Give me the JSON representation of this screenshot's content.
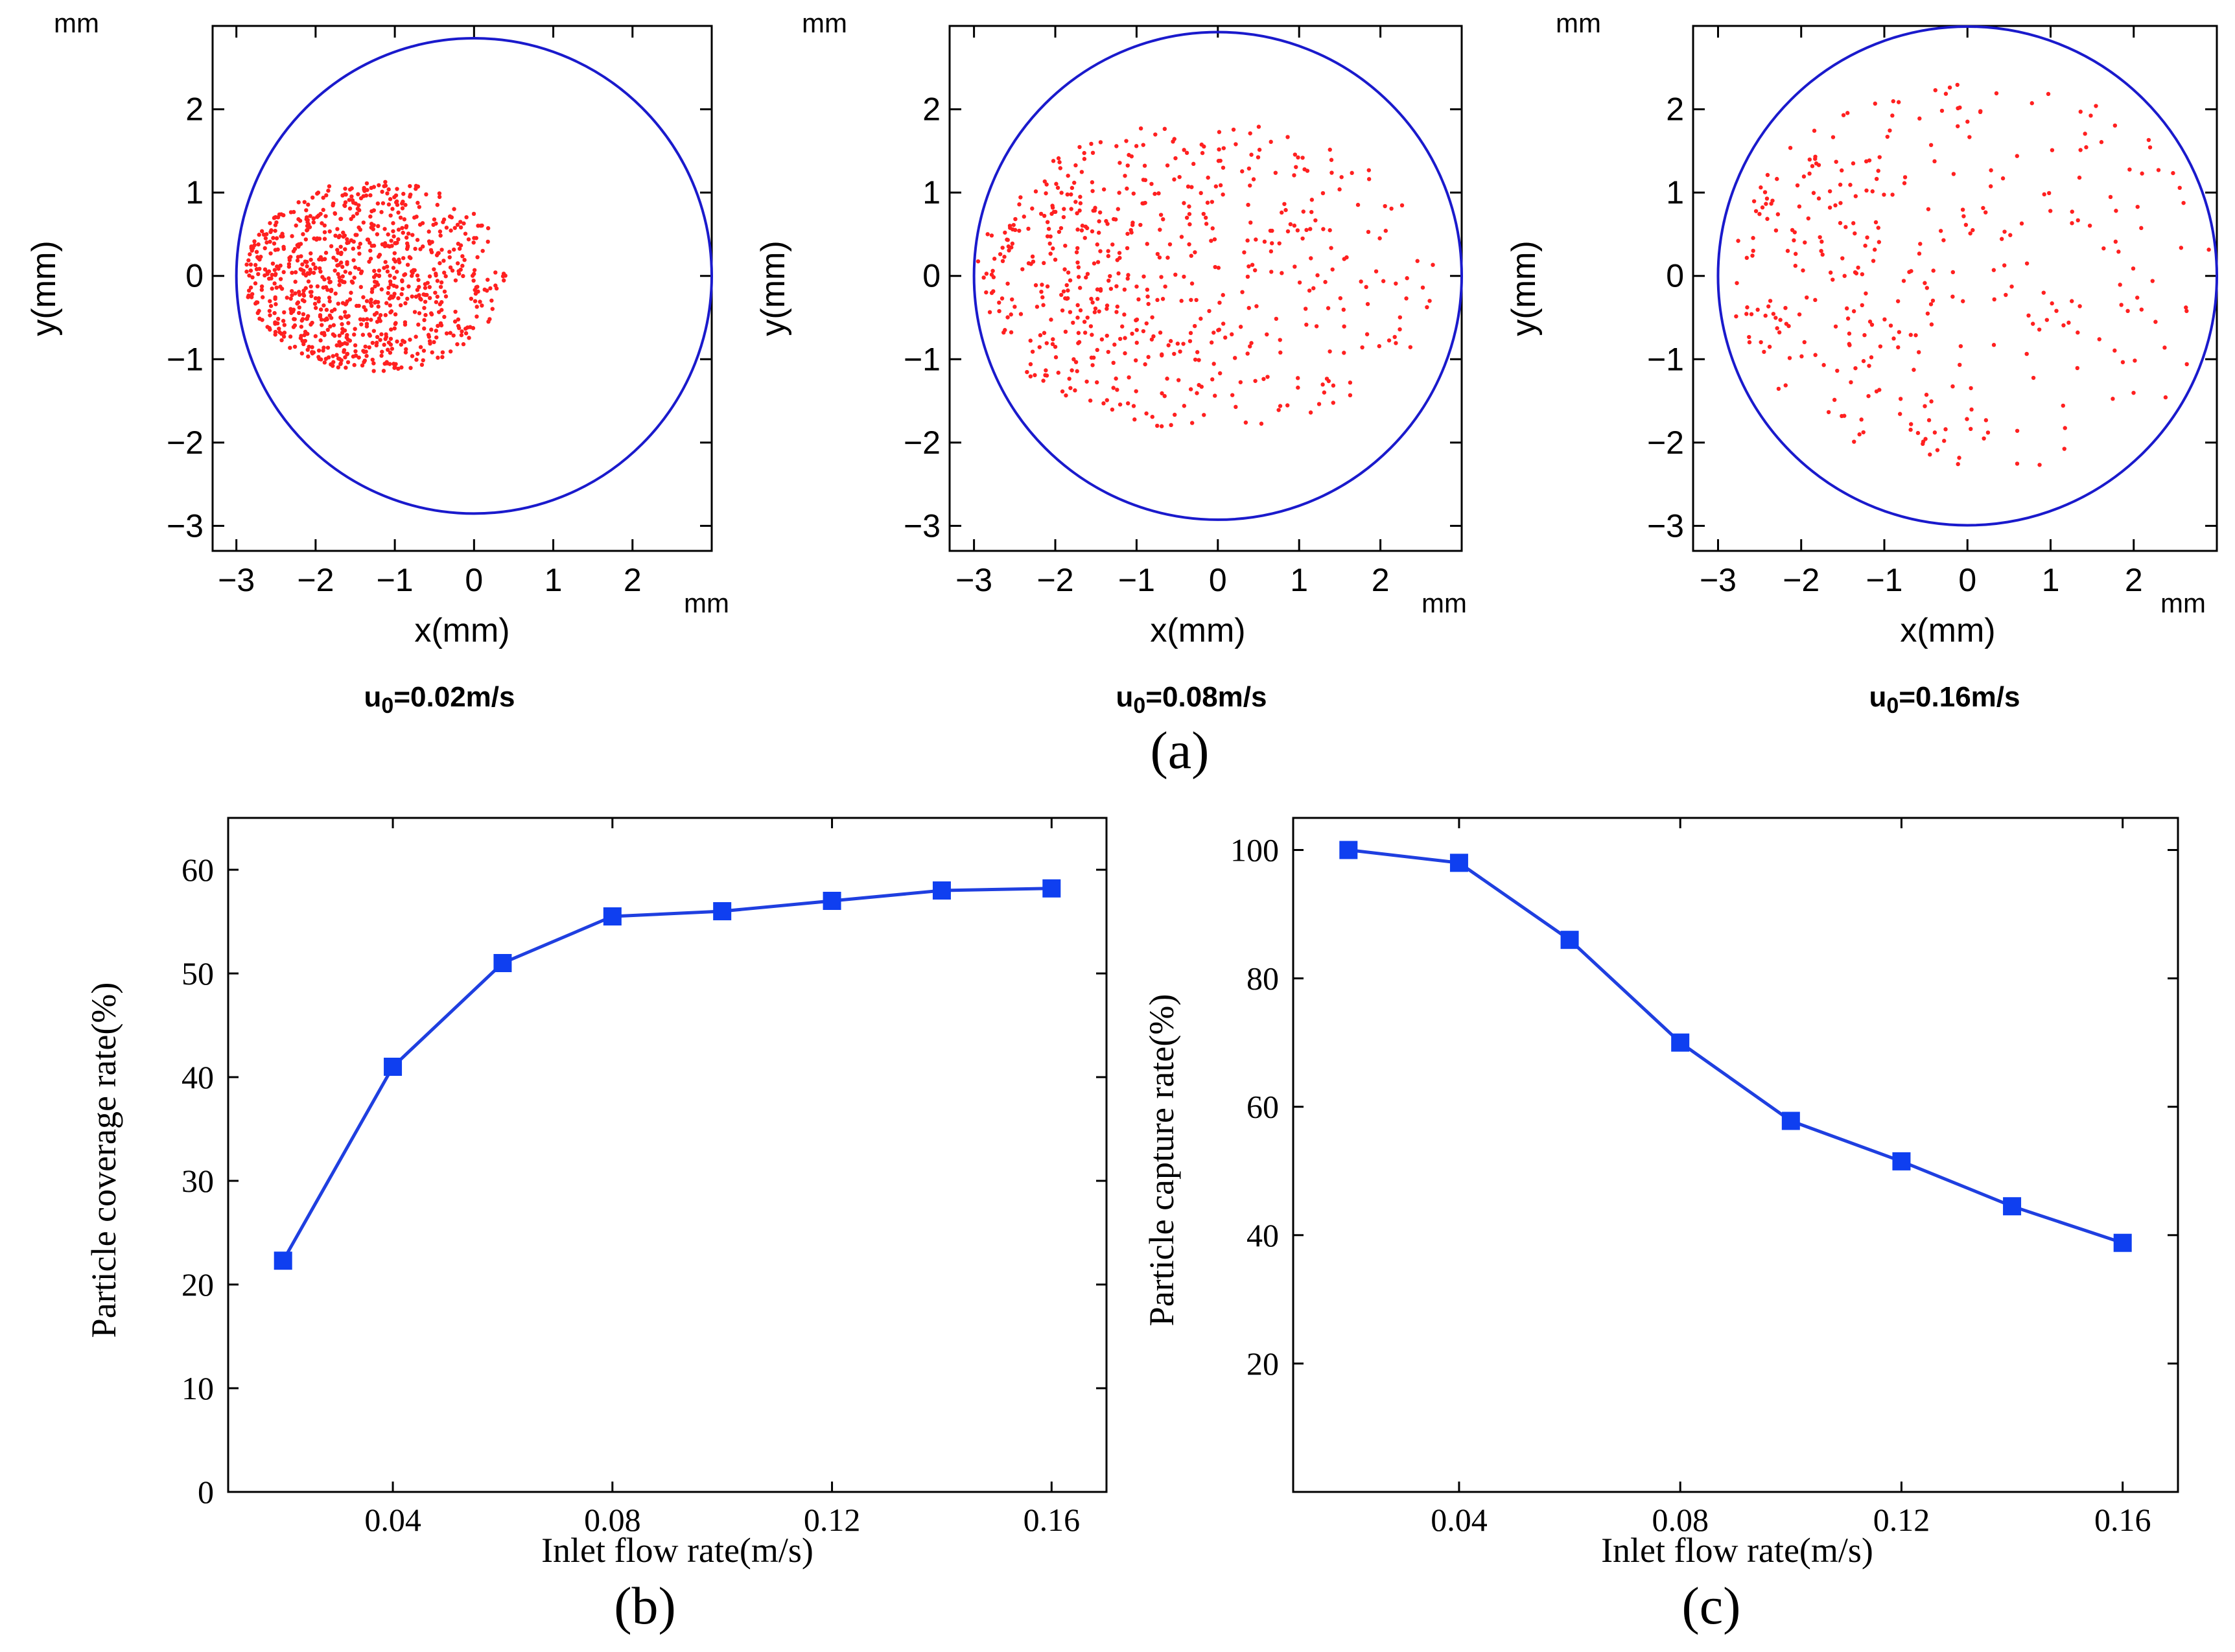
{
  "figure": {
    "panel_a_label": "(a)",
    "panel_b_label": "(b)",
    "panel_c_label": "(c)"
  },
  "colors": {
    "circle": "#1a1acc",
    "particle": "#ff2020",
    "line": "#1f3fe0",
    "marker": "#0f3ff0",
    "axis": "#000000"
  },
  "chart_data": [
    {
      "id": "scatter1",
      "type": "scatter",
      "caption_prefix": "u",
      "caption_sub": "0",
      "caption_suffix": "=0.02m/s",
      "unit_top": "mm",
      "unit_right": "mm",
      "xlabel": "x(mm)",
      "ylabel": "y(mm)",
      "xlim": [
        -3.3,
        3.0
      ],
      "ylim": [
        -3.3,
        3.0
      ],
      "xticks": [
        -3,
        -2,
        -1,
        0,
        1,
        2
      ],
      "yticks": [
        -3,
        -2,
        -1,
        0,
        1,
        2
      ],
      "xtick_labels": [
        "−3",
        "−2",
        "−1",
        "0",
        "1",
        "2"
      ],
      "ytick_labels": [
        "−3",
        "−2",
        "−1",
        "0",
        "1",
        "2"
      ],
      "circle": {
        "cx": 0,
        "cy": 0,
        "r": 3.0
      },
      "particles": {
        "count": 900,
        "region": "ellipse",
        "center": [
          -1.25,
          0.0
        ],
        "rx": 1.65,
        "ry": 1.15,
        "bias_toward_x": -2.4,
        "seed": 11
      }
    },
    {
      "id": "scatter2",
      "type": "scatter",
      "caption_prefix": "u",
      "caption_sub": "0",
      "caption_suffix": "=0.08m/s",
      "unit_top": "mm",
      "unit_right": "mm",
      "xlabel": "x(mm)",
      "ylabel": "y(mm)",
      "xlim": [
        -3.3,
        3.0
      ],
      "ylim": [
        -3.3,
        3.0
      ],
      "xticks": [
        -3,
        -2,
        -1,
        0,
        1,
        2
      ],
      "yticks": [
        -3,
        -2,
        -1,
        0,
        1,
        2
      ],
      "xtick_labels": [
        "−3",
        "−2",
        "−1",
        "0",
        "1",
        "2"
      ],
      "ytick_labels": [
        "−3",
        "−2",
        "−1",
        "0",
        "1",
        "2"
      ],
      "circle": {
        "cx": 0,
        "cy": 0,
        "r": 3.0
      },
      "particles": {
        "count": 560,
        "region": "ellipse",
        "center": [
          -0.15,
          0.0
        ],
        "rx": 2.85,
        "ry": 1.85,
        "bias_toward_x": -2.2,
        "seed": 23
      }
    },
    {
      "id": "scatter3",
      "type": "scatter",
      "caption_prefix": "u",
      "caption_sub": "0",
      "caption_suffix": "=0.16m/s",
      "unit_top": "mm",
      "unit_right": "mm",
      "xlabel": "x(mm)",
      "ylabel": "y(mm)",
      "xlim": [
        -3.3,
        3.0
      ],
      "ylim": [
        -3.3,
        3.0
      ],
      "xticks": [
        -3,
        -2,
        -1,
        0,
        1,
        2
      ],
      "yticks": [
        -3,
        -2,
        -1,
        0,
        1,
        2
      ],
      "xtick_labels": [
        "−3",
        "−2",
        "−1",
        "0",
        "1",
        "2"
      ],
      "ytick_labels": [
        "−3",
        "−2",
        "−1",
        "0",
        "1",
        "2"
      ],
      "circle": {
        "cx": 0,
        "cy": 0,
        "r": 3.0
      },
      "particles": {
        "count": 330,
        "region": "ellipse",
        "center": [
          0.1,
          0.0
        ],
        "rx": 2.95,
        "ry": 2.35,
        "bias_toward_x": -2.0,
        "seed": 37
      }
    },
    {
      "id": "coverage",
      "type": "line",
      "xlabel": "Inlet flow rate(m/s)",
      "ylabel": "Particle coverage rate(%)",
      "xlim": [
        0.01,
        0.17
      ],
      "ylim": [
        0,
        65
      ],
      "xticks": [
        0.04,
        0.08,
        0.12,
        0.16
      ],
      "xtick_labels": [
        "0.04",
        "0.08",
        "0.12",
        "0.16"
      ],
      "yticks": [
        0,
        10,
        20,
        30,
        40,
        50,
        60
      ],
      "ytick_labels": [
        "0",
        "10",
        "20",
        "30",
        "40",
        "50",
        "60"
      ],
      "x": [
        0.02,
        0.04,
        0.06,
        0.08,
        0.1,
        0.12,
        0.14,
        0.16
      ],
      "y": [
        22.3,
        41.0,
        51.0,
        55.5,
        56.0,
        57.0,
        58.0,
        58.2
      ]
    },
    {
      "id": "capture",
      "type": "line",
      "xlabel": "Inlet flow rate(m/s)",
      "ylabel": "Particle capture rate(%)",
      "xlim": [
        0.01,
        0.17
      ],
      "ylim": [
        0,
        105
      ],
      "xticks": [
        0.04,
        0.08,
        0.12,
        0.16
      ],
      "xtick_labels": [
        "0.04",
        "0.08",
        "0.12",
        "0.16"
      ],
      "yticks": [
        20,
        40,
        60,
        80,
        100
      ],
      "ytick_labels": [
        "20",
        "40",
        "60",
        "80",
        "100"
      ],
      "x": [
        0.02,
        0.04,
        0.06,
        0.08,
        0.1,
        0.12,
        0.14,
        0.16
      ],
      "y": [
        100.0,
        98.0,
        86.0,
        70.0,
        57.8,
        51.5,
        44.5,
        38.8
      ]
    }
  ]
}
